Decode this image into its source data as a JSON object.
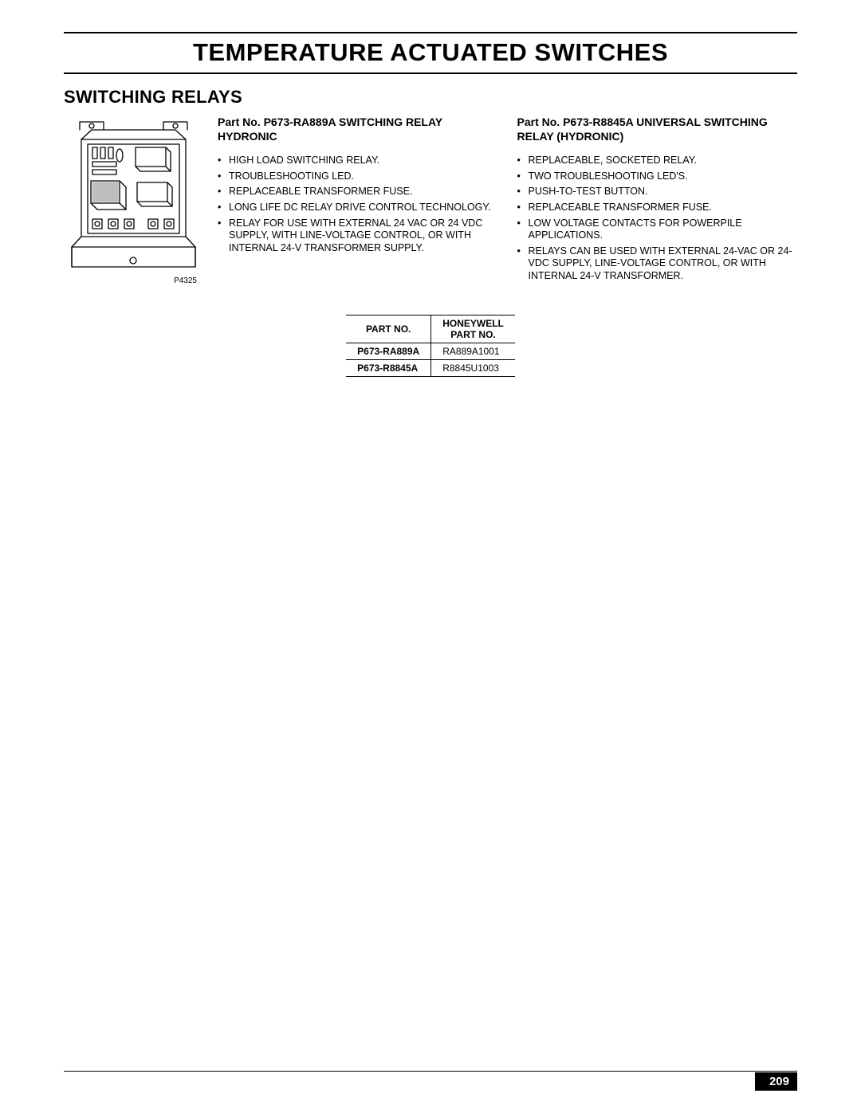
{
  "page": {
    "title": "TEMPERATURE ACTUATED SWITCHES",
    "section": "SWITCHING RELAYS",
    "number": "209"
  },
  "illustration": {
    "label": "P4325"
  },
  "products": [
    {
      "heading": "Part No. P673-RA889A SWITCHING RELAY HYDRONIC",
      "features": [
        "HIGH LOAD SWITCHING RELAY.",
        "TROUBLESHOOTING LED.",
        "REPLACEABLE TRANSFORMER FUSE.",
        "LONG LIFE DC RELAY DRIVE CONTROL TECHNOLOGY.",
        "RELAY FOR USE WITH EXTERNAL 24 VAC OR 24 VDC SUPPLY, WITH LINE-VOLTAGE CONTROL, OR WITH INTERNAL 24-V TRANSFORMER SUPPLY."
      ]
    },
    {
      "heading": "Part No. P673-R8845A UNIVERSAL SWITCHING RELAY (HYDRONIC)",
      "features": [
        "REPLACEABLE, SOCKETED RELAY.",
        "TWO TROUBLESHOOTING LED'S.",
        "PUSH-TO-TEST BUTTON.",
        "REPLACEABLE TRANSFORMER FUSE.",
        "LOW VOLTAGE CONTACTS FOR POWERPILE APPLICATIONS.",
        "RELAYS CAN BE USED WITH EXTERNAL 24-VAC OR 24-VDC SUPPLY, LINE-VOLTAGE CONTROL, OR WITH INTERNAL 24-V TRANSFORMER."
      ]
    }
  ],
  "table": {
    "headers": [
      "PART NO.",
      "HONEYWELL PART NO."
    ],
    "rows": [
      [
        "P673-RA889A",
        "RA889A1001"
      ],
      [
        "P673-R8845A",
        "R8845U1003"
      ]
    ]
  }
}
